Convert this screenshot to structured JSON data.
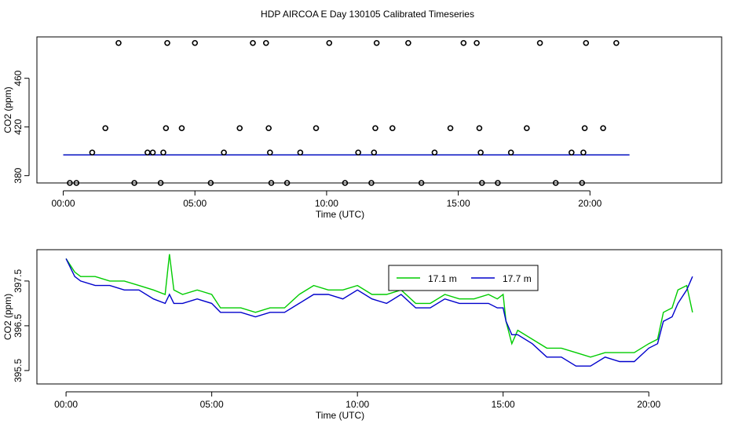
{
  "title": "HDP AIRCOA E  Day 130105  Calibrated Timeseries",
  "chart_data": [
    {
      "type": "scatter+line",
      "xlabel": "Time (UTC)",
      "ylabel": "CO2 (ppm)",
      "xlim": [
        -1,
        25
      ],
      "ylim": [
        374,
        494
      ],
      "xticks": [
        0,
        5,
        10,
        15,
        20
      ],
      "xtick_labels": [
        "00:00",
        "05:00",
        "10:00",
        "15:00",
        "20:00"
      ],
      "yticks": [
        380,
        420,
        460
      ],
      "ytick_labels": [
        "380",
        "420",
        "460"
      ],
      "points": [
        [
          0.25,
          374
        ],
        [
          0.5,
          374
        ],
        [
          1.1,
          399
        ],
        [
          1.6,
          419
        ],
        [
          2.1,
          489
        ],
        [
          2.7,
          374
        ],
        [
          3.2,
          399
        ],
        [
          3.4,
          399
        ],
        [
          3.7,
          374
        ],
        [
          3.8,
          399
        ],
        [
          3.9,
          419
        ],
        [
          3.95,
          489
        ],
        [
          4.5,
          419
        ],
        [
          5.0,
          489
        ],
        [
          5.6,
          374
        ],
        [
          6.1,
          399
        ],
        [
          6.7,
          419
        ],
        [
          7.2,
          489
        ],
        [
          7.7,
          489
        ],
        [
          7.8,
          419
        ],
        [
          7.85,
          399
        ],
        [
          7.9,
          374
        ],
        [
          8.5,
          374
        ],
        [
          9.0,
          399
        ],
        [
          9.6,
          419
        ],
        [
          10.1,
          489
        ],
        [
          10.7,
          374
        ],
        [
          11.2,
          399
        ],
        [
          11.7,
          374
        ],
        [
          11.8,
          399
        ],
        [
          11.85,
          419
        ],
        [
          11.9,
          489
        ],
        [
          12.5,
          419
        ],
        [
          13.1,
          489
        ],
        [
          13.6,
          374
        ],
        [
          14.1,
          399
        ],
        [
          14.7,
          419
        ],
        [
          15.2,
          489
        ],
        [
          15.7,
          489
        ],
        [
          15.8,
          419
        ],
        [
          15.85,
          399
        ],
        [
          15.9,
          374
        ],
        [
          16.5,
          374
        ],
        [
          17.0,
          399
        ],
        [
          17.6,
          419
        ],
        [
          18.1,
          489
        ],
        [
          18.7,
          374
        ],
        [
          19.3,
          399
        ],
        [
          19.7,
          374
        ],
        [
          19.75,
          399
        ],
        [
          19.8,
          419
        ],
        [
          19.85,
          489
        ],
        [
          20.5,
          419
        ],
        [
          21.0,
          489
        ]
      ],
      "series": [
        {
          "name": "17.1 m",
          "color": "#00cc00",
          "x": [
            0,
            21.5
          ],
          "y": [
            397,
            397
          ]
        },
        {
          "name": "17.7 m",
          "color": "#0000cc",
          "x": [
            0,
            21.5
          ],
          "y": [
            397,
            397
          ]
        }
      ]
    },
    {
      "type": "line",
      "xlabel": "Time (UTC)",
      "ylabel": "CO2 (ppm)",
      "xlim": [
        -1,
        22.5
      ],
      "ylim": [
        395.2,
        398.2
      ],
      "xticks": [
        0,
        5,
        10,
        15,
        20
      ],
      "xtick_labels": [
        "00:00",
        "05:00",
        "10:00",
        "15:00",
        "20:00"
      ],
      "yticks": [
        395.5,
        396.5,
        397.5
      ],
      "ytick_labels": [
        "395.5",
        "396.5",
        "397.5"
      ],
      "legend": "top-right",
      "series": [
        {
          "name": "17.1 m",
          "color": "#00cc00",
          "x": [
            0,
            0.3,
            0.5,
            1,
            1.5,
            2,
            2.5,
            3,
            3.4,
            3.55,
            3.7,
            4,
            4.5,
            5,
            5.3,
            5.5,
            6,
            6.5,
            7,
            7.5,
            8,
            8.5,
            9,
            9.5,
            10,
            10.5,
            11,
            11.5,
            12,
            12.5,
            13,
            13.5,
            14,
            14.5,
            14.8,
            15,
            15.1,
            15.3,
            15.5,
            16,
            16.5,
            17,
            17.5,
            18,
            18.5,
            19,
            19.5,
            20,
            20.3,
            20.5,
            20.8,
            21,
            21.3,
            21.5
          ],
          "y": [
            398.0,
            397.7,
            397.6,
            397.6,
            397.5,
            397.5,
            397.4,
            397.3,
            397.2,
            398.1,
            397.3,
            397.2,
            397.3,
            397.2,
            396.9,
            396.9,
            396.9,
            396.8,
            396.9,
            396.9,
            397.2,
            397.4,
            397.3,
            397.3,
            397.4,
            397.2,
            397.2,
            397.3,
            397.0,
            397.0,
            397.2,
            397.1,
            397.1,
            397.2,
            397.1,
            397.2,
            396.6,
            396.1,
            396.4,
            396.2,
            396.0,
            396.0,
            395.9,
            395.8,
            395.9,
            395.9,
            395.9,
            396.1,
            396.2,
            396.8,
            396.9,
            397.3,
            397.4,
            396.8
          ]
        },
        {
          "name": "17.7 m",
          "color": "#0000cc",
          "x": [
            0,
            0.3,
            0.5,
            1,
            1.5,
            2,
            2.5,
            3,
            3.4,
            3.55,
            3.7,
            4,
            4.5,
            5,
            5.3,
            5.5,
            6,
            6.5,
            7,
            7.5,
            8,
            8.5,
            9,
            9.5,
            10,
            10.5,
            11,
            11.5,
            12,
            12.5,
            13,
            13.5,
            14,
            14.5,
            14.8,
            15,
            15.1,
            15.3,
            15.5,
            16,
            16.5,
            17,
            17.5,
            18,
            18.5,
            19,
            19.5,
            20,
            20.3,
            20.5,
            20.8,
            21,
            21.3,
            21.5
          ],
          "y": [
            398.0,
            397.6,
            397.5,
            397.4,
            397.4,
            397.3,
            397.3,
            397.1,
            397.0,
            397.2,
            397.0,
            397.0,
            397.1,
            397.0,
            396.8,
            396.8,
            396.8,
            396.7,
            396.8,
            396.8,
            397.0,
            397.2,
            397.2,
            397.1,
            397.3,
            397.1,
            397.0,
            397.2,
            396.9,
            396.9,
            397.1,
            397.0,
            397.0,
            397.0,
            396.9,
            396.9,
            396.6,
            396.3,
            396.3,
            396.1,
            395.8,
            395.8,
            395.6,
            395.6,
            395.8,
            395.7,
            395.7,
            396.0,
            396.1,
            396.6,
            396.7,
            397.0,
            397.3,
            397.6
          ]
        }
      ]
    }
  ]
}
